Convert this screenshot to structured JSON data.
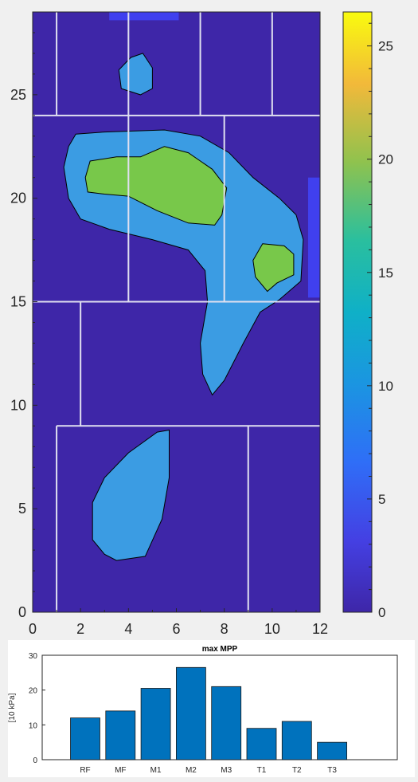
{
  "chart_data": [
    {
      "type": "contour",
      "x_range": [
        0,
        12
      ],
      "y_range": [
        0,
        29
      ],
      "xticks": [
        "0",
        "2",
        "4",
        "6",
        "8",
        "10",
        "12"
      ],
      "yticks": [
        "0",
        "5",
        "10",
        "15",
        "20",
        "25"
      ],
      "levels": [
        0,
        10,
        20
      ],
      "colors": {
        "low": "#3e26a8",
        "mid": "#3b9ce3",
        "high": "#78c84a",
        "grid": "#e0e0f0"
      },
      "sensor_strip_color": "#4040ee",
      "regions": [
        {
          "name": "heel",
          "level": 10,
          "points": [
            [
              3.5,
              2.5
            ],
            [
              4.7,
              2.7
            ],
            [
              5.4,
              4.5
            ],
            [
              5.7,
              6.5
            ],
            [
              5.7,
              8.8
            ],
            [
              5.2,
              8.7
            ],
            [
              4.0,
              7.7
            ],
            [
              3.0,
              6.5
            ],
            [
              2.5,
              5.3
            ],
            [
              2.5,
              3.5
            ],
            [
              3.0,
              2.8
            ]
          ]
        },
        {
          "name": "midfoot-forefoot",
          "level": 10,
          "points": [
            [
              1.8,
              23.1
            ],
            [
              3.0,
              23.2
            ],
            [
              5.5,
              23.3
            ],
            [
              7.0,
              23.0
            ],
            [
              8.2,
              22.2
            ],
            [
              9.2,
              21.0
            ],
            [
              10.3,
              20.0
            ],
            [
              11.0,
              19.2
            ],
            [
              11.3,
              18.0
            ],
            [
              11.2,
              16.0
            ],
            [
              10.3,
              15.1
            ],
            [
              9.5,
              14.5
            ],
            [
              8.8,
              13.0
            ],
            [
              8.0,
              11.2
            ],
            [
              7.5,
              10.5
            ],
            [
              7.1,
              11.5
            ],
            [
              7.0,
              13.0
            ],
            [
              7.3,
              15.0
            ],
            [
              7.2,
              16.5
            ],
            [
              6.5,
              17.5
            ],
            [
              5.0,
              18.0
            ],
            [
              3.2,
              18.5
            ],
            [
              2.0,
              19.0
            ],
            [
              1.5,
              20.0
            ],
            [
              1.3,
              21.5
            ],
            [
              1.5,
              22.5
            ]
          ]
        },
        {
          "name": "toe",
          "level": 10,
          "points": [
            [
              3.7,
              25.3
            ],
            [
              4.5,
              25.0
            ],
            [
              5.0,
              25.3
            ],
            [
              5.0,
              26.3
            ],
            [
              4.6,
              27.0
            ],
            [
              4.1,
              26.8
            ],
            [
              3.6,
              26.2
            ]
          ]
        },
        {
          "name": "forefoot-peak",
          "level": 20,
          "points": [
            [
              2.4,
              21.8
            ],
            [
              3.5,
              22.0
            ],
            [
              4.5,
              22.0
            ],
            [
              5.5,
              22.5
            ],
            [
              6.5,
              22.2
            ],
            [
              7.5,
              21.4
            ],
            [
              8.1,
              20.5
            ],
            [
              7.9,
              19.2
            ],
            [
              7.6,
              18.7
            ],
            [
              6.5,
              18.8
            ],
            [
              5.2,
              19.4
            ],
            [
              4.0,
              20.1
            ],
            [
              3.0,
              20.2
            ],
            [
              2.3,
              20.3
            ],
            [
              2.2,
              21.0
            ]
          ]
        },
        {
          "name": "lateral-peak",
          "level": 20,
          "points": [
            [
              9.6,
              17.8
            ],
            [
              10.5,
              17.7
            ],
            [
              10.9,
              17.3
            ],
            [
              10.9,
              16.3
            ],
            [
              10.2,
              15.9
            ],
            [
              9.8,
              15.5
            ],
            [
              9.3,
              16.2
            ],
            [
              9.2,
              17.0
            ]
          ]
        }
      ],
      "grid_lines": [
        {
          "x1": 0,
          "y1": 24,
          "x2": 12,
          "y2": 24
        },
        {
          "x1": 0,
          "y1": 15,
          "x2": 12,
          "y2": 15
        },
        {
          "x1": 1,
          "y1": 9,
          "x2": 12,
          "y2": 9
        },
        {
          "x1": 1,
          "y1": 24,
          "x2": 1,
          "y2": 29
        },
        {
          "x1": 4,
          "y1": 24,
          "x2": 4,
          "y2": 29
        },
        {
          "x1": 7,
          "y1": 24,
          "x2": 7,
          "y2": 29
        },
        {
          "x1": 10,
          "y1": 24,
          "x2": 10,
          "y2": 29
        },
        {
          "x1": 4,
          "y1": 15,
          "x2": 4,
          "y2": 24
        },
        {
          "x1": 8,
          "y1": 15,
          "x2": 8,
          "y2": 24
        },
        {
          "x1": 2,
          "y1": 9,
          "x2": 2,
          "y2": 15
        },
        {
          "x1": 1,
          "y1": 0,
          "x2": 1,
          "y2": 9
        },
        {
          "x1": 9,
          "y1": 0,
          "x2": 9,
          "y2": 9
        }
      ],
      "sensor_strips": [
        {
          "x0": 3.2,
          "x1": 6.1,
          "y0": 28.6,
          "y1": 29
        },
        {
          "x0": 11.5,
          "x1": 12,
          "y0": 15.2,
          "y1": 21.0
        }
      ]
    },
    {
      "type": "colorbar",
      "range": [
        0,
        26.5
      ],
      "ticks": [
        "0",
        "5",
        "10",
        "15",
        "20",
        "25"
      ],
      "colormap": "parula"
    },
    {
      "type": "bar",
      "title": "max MPP",
      "ylabel": "[10 kPa]",
      "categories": [
        "RF",
        "MF",
        "M1",
        "M2",
        "M3",
        "T1",
        "T2",
        "T3"
      ],
      "values": [
        12,
        14,
        20.5,
        26.5,
        21,
        9,
        11,
        5
      ],
      "ylim": [
        0,
        30
      ],
      "yticks": [
        "0",
        "10",
        "20",
        "30"
      ],
      "bar_color": "#0072bd"
    }
  ]
}
